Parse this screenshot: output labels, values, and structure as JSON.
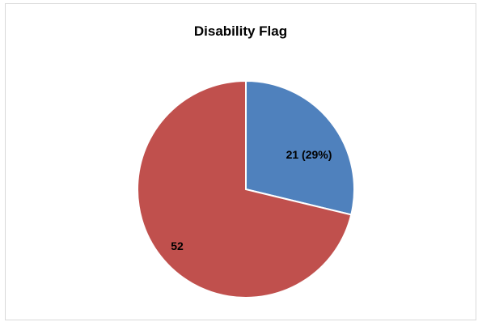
{
  "chart_data": {
    "type": "pie",
    "title": "Disability Flag",
    "slices": [
      {
        "value": 21,
        "label": "21 (29%)",
        "color": "#4f81bd"
      },
      {
        "value": 52,
        "label": "52",
        "color": "#c0504d"
      }
    ],
    "legend": "none"
  }
}
